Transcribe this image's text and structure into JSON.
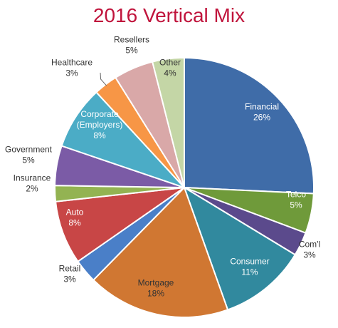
{
  "chart_data": {
    "type": "pie",
    "title": "2016 Vertical Mix",
    "slices": [
      {
        "name": "Financial",
        "value": 26,
        "label": "26%",
        "color": "#3f6ca8"
      },
      {
        "name": "Telco",
        "value": 5,
        "label": "5%",
        "color": "#6f9a3a"
      },
      {
        "name": "Com'l",
        "value": 3,
        "label": "3%",
        "color": "#5b4a8c"
      },
      {
        "name": "Consumer",
        "value": 11,
        "label": "11%",
        "color": "#31899e"
      },
      {
        "name": "Mortgage",
        "value": 18,
        "label": "18%",
        "color": "#d07732"
      },
      {
        "name": "Retail",
        "value": 3,
        "label": "3%",
        "color": "#4a7fc8"
      },
      {
        "name": "Auto",
        "value": 8,
        "label": "8%",
        "color": "#c84646"
      },
      {
        "name": "Insurance",
        "value": 2,
        "label": "2%",
        "color": "#93b352"
      },
      {
        "name": "Government",
        "value": 5,
        "label": "5%",
        "color": "#7b5ba6"
      },
      {
        "name": "Corporate (Employers)",
        "value": 8,
        "label": "8%",
        "color": "#4bacc6"
      },
      {
        "name": "Healthcare",
        "value": 3,
        "label": "3%",
        "color": "#f79646"
      },
      {
        "name": "Resellers",
        "value": 5,
        "label": "5%",
        "color": "#d9a8a8"
      },
      {
        "name": "Other",
        "value": 4,
        "label": "4%",
        "color": "#c4d6a6"
      }
    ]
  }
}
